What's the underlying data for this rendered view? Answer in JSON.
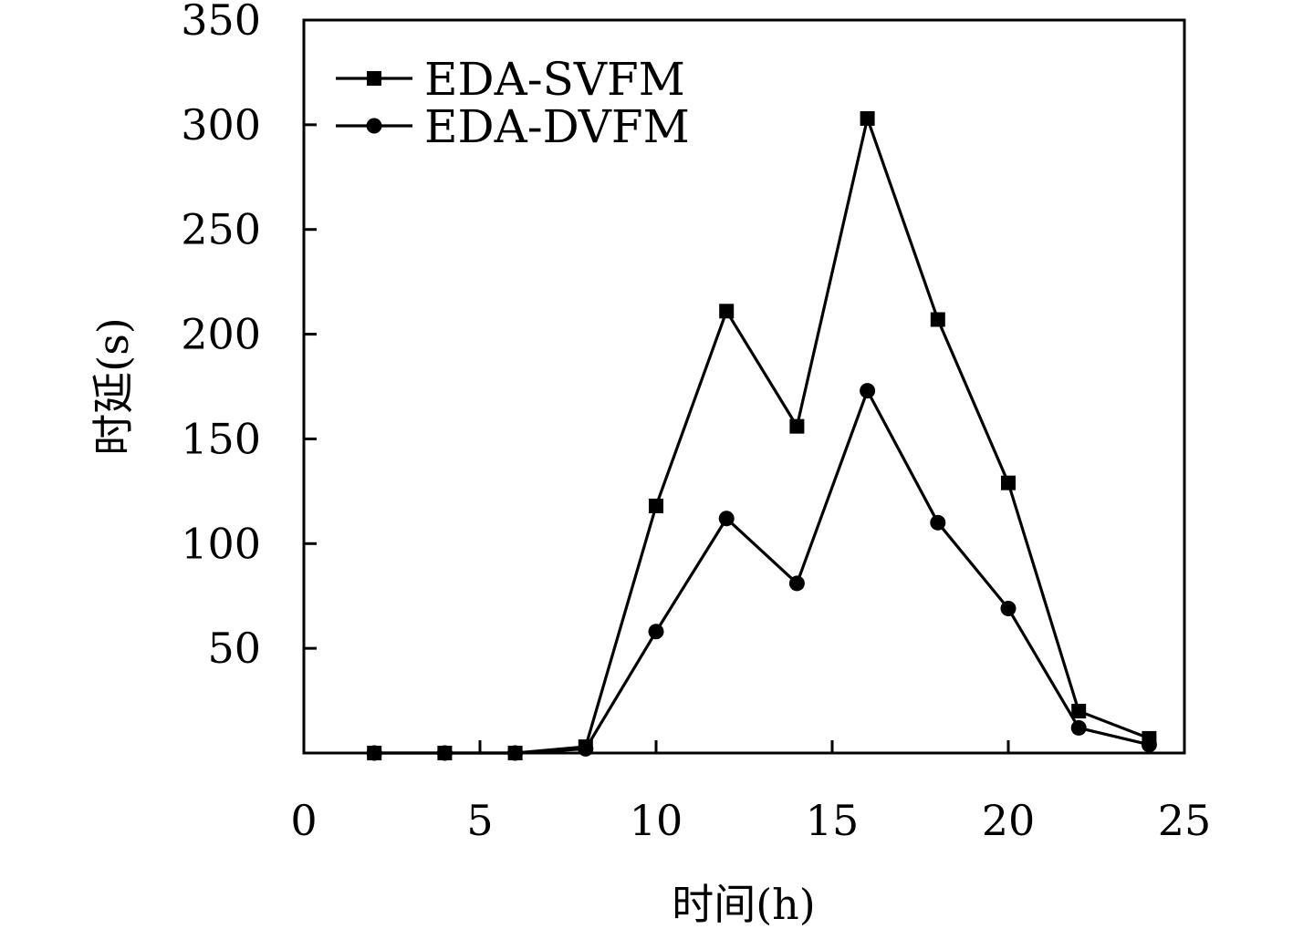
{
  "chart_data": {
    "type": "line",
    "title": "",
    "xlabel": "时间(h)",
    "ylabel": "时延(s)",
    "xlim": [
      0,
      25
    ],
    "ylim": [
      0,
      350
    ],
    "x_ticks": [
      0,
      5,
      10,
      15,
      20,
      25
    ],
    "x_tick_labels": [
      "0",
      "5",
      "10",
      "15",
      "20",
      "25"
    ],
    "y_ticks": [
      50,
      100,
      150,
      200,
      250,
      300,
      350
    ],
    "y_tick_labels": [
      "50",
      "100",
      "150",
      "200",
      "250",
      "300",
      "350"
    ],
    "grid": false,
    "legend_position": "top-left",
    "x": [
      2,
      4,
      6,
      8,
      10,
      12,
      14,
      16,
      18,
      20,
      22,
      24
    ],
    "series": [
      {
        "name": "EDA-SVFM",
        "marker": "square",
        "color": "#000000",
        "values": [
          0,
          0,
          0,
          3,
          118,
          211,
          156,
          303,
          207,
          129,
          20,
          7
        ]
      },
      {
        "name": "EDA-DVFM",
        "marker": "circle",
        "color": "#000000",
        "values": [
          0,
          0,
          0,
          2,
          58,
          112,
          81,
          173,
          110,
          69,
          12,
          4
        ]
      }
    ]
  }
}
